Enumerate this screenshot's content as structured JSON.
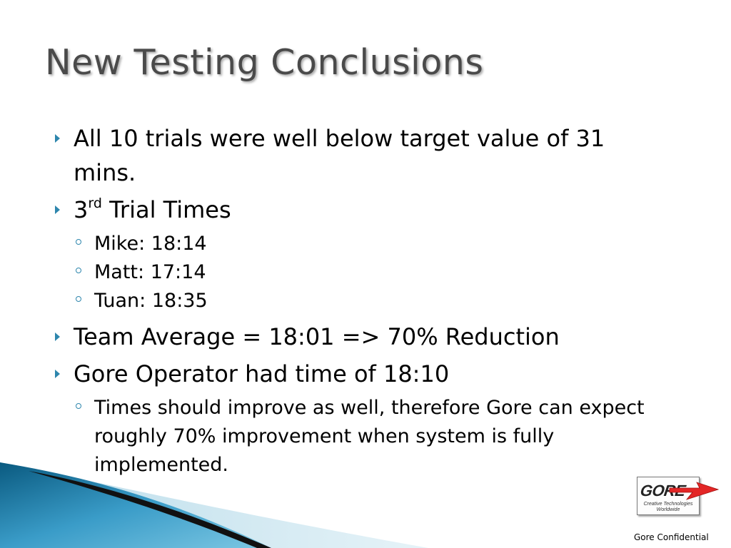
{
  "slide": {
    "title": "New Testing Conclusions",
    "bullets": {
      "trials": "All 10 trials were well below target value of 31 mins.",
      "third_prefix": "3",
      "third_sup": "rd",
      "third_suffix": " Trial Times",
      "times": [
        "Mike:  18:14",
        "Matt:  17:14",
        "Tuan:  18:35"
      ],
      "team_average": "Team Average = 18:01 =>  70% Reduction",
      "gore_operator": "Gore Operator had time of 18:10",
      "expectation": "Times should improve as well, therefore Gore can expect roughly 70% improvement when system is fully implemented."
    }
  },
  "logo": {
    "word": "GORE",
    "tagline_1": "Creative Technologies",
    "tagline_2": "Worldwide",
    "arrow_color": "#e32626"
  },
  "footer": {
    "confidential": "Gore Confidential"
  },
  "theme": {
    "bullet_color": "#2e86ad",
    "swoosh_dark": "#0a5a80",
    "swoosh_light": "#5ab3d6"
  },
  "icons": [
    "triangle-bullet-icon",
    "circle-bullet-icon",
    "red-arrow-icon"
  ]
}
